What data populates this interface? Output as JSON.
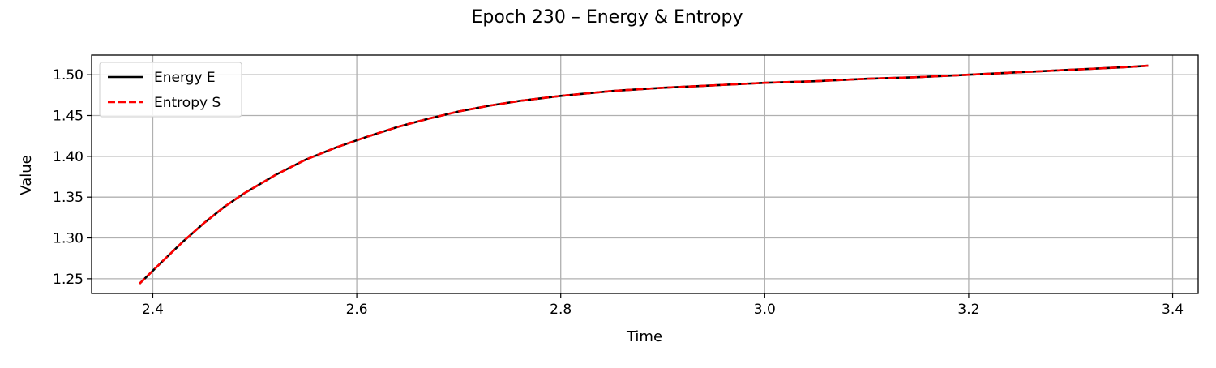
{
  "chart_data": {
    "type": "line",
    "title": "Epoch 230 – Energy & Entropy",
    "xlabel": "Time",
    "ylabel": "Value",
    "xlim": [
      2.34,
      3.425
    ],
    "ylim": [
      1.232,
      1.524
    ],
    "xticks": [
      {
        "value": 2.4,
        "label": "2.4"
      },
      {
        "value": 2.6,
        "label": "2.6"
      },
      {
        "value": 2.8,
        "label": "2.8"
      },
      {
        "value": 3.0,
        "label": "3.0"
      },
      {
        "value": 3.2,
        "label": "3.2"
      },
      {
        "value": 3.4,
        "label": "3.4"
      }
    ],
    "yticks": [
      {
        "value": 1.25,
        "label": "1.25"
      },
      {
        "value": 1.3,
        "label": "1.30"
      },
      {
        "value": 1.35,
        "label": "1.35"
      },
      {
        "value": 1.4,
        "label": "1.40"
      },
      {
        "value": 1.45,
        "label": "1.45"
      },
      {
        "value": 1.5,
        "label": "1.50"
      }
    ],
    "grid": true,
    "legend_position": "upper-left",
    "x": [
      2.387,
      2.41,
      2.43,
      2.45,
      2.47,
      2.49,
      2.52,
      2.55,
      2.58,
      2.61,
      2.64,
      2.67,
      2.7,
      2.73,
      2.76,
      2.8,
      2.85,
      2.9,
      2.95,
      3.0,
      3.05,
      3.1,
      3.15,
      3.2,
      3.25,
      3.3,
      3.35,
      3.376
    ],
    "series": [
      {
        "name": "Energy E",
        "color": "#000000",
        "dash": "solid",
        "values": [
          1.244,
          1.272,
          1.296,
          1.318,
          1.338,
          1.355,
          1.377,
          1.396,
          1.411,
          1.424,
          1.436,
          1.446,
          1.455,
          1.462,
          1.468,
          1.474,
          1.48,
          1.484,
          1.487,
          1.49,
          1.492,
          1.495,
          1.497,
          1.5,
          1.503,
          1.506,
          1.509,
          1.511
        ]
      },
      {
        "name": "Entropy S",
        "color": "#ff0000",
        "dash": "dashed",
        "values": [
          1.244,
          1.272,
          1.296,
          1.318,
          1.338,
          1.355,
          1.377,
          1.396,
          1.411,
          1.424,
          1.436,
          1.446,
          1.455,
          1.462,
          1.468,
          1.474,
          1.48,
          1.484,
          1.487,
          1.49,
          1.492,
          1.495,
          1.497,
          1.5,
          1.503,
          1.506,
          1.509,
          1.511
        ]
      }
    ]
  }
}
